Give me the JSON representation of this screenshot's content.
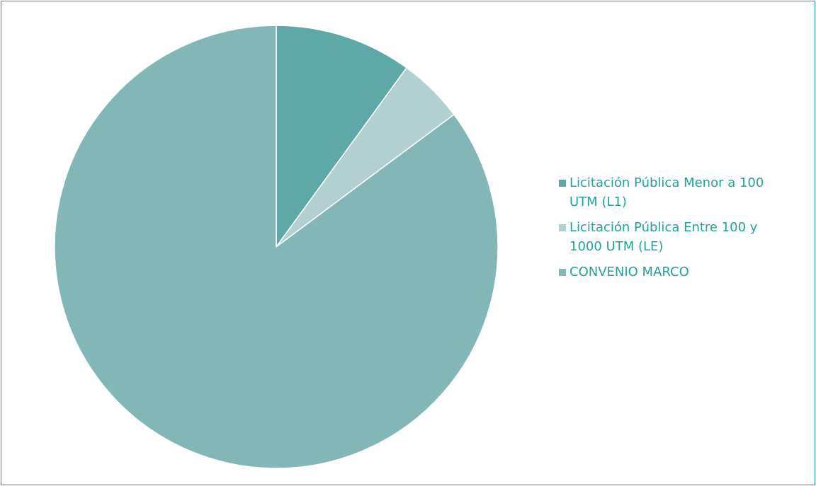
{
  "chart_data": {
    "type": "pie",
    "title": "",
    "start_angle_deg": 0,
    "direction": "clockwise",
    "slices": [
      {
        "label": "Licitación Pública Menor a 100 UTM (L1)",
        "value": 10.0,
        "color": "#5fa8a8"
      },
      {
        "label": "Licitación Pública Entre 100 y 1000 UTM (LE)",
        "value": 4.8,
        "color": "#b3d0d1"
      },
      {
        "label": "CONVENIO MARCO",
        "value": 85.2,
        "color": "#83b6b6"
      }
    ],
    "legend_position": "right",
    "legend_text_color": "#20a39a",
    "slice_stroke_color": "#ffffff",
    "frame_color": "#2a9a95"
  }
}
